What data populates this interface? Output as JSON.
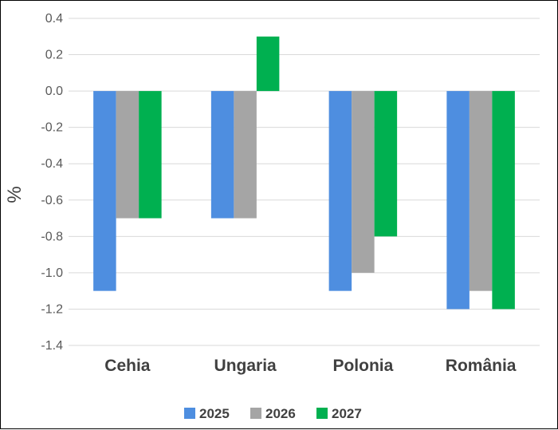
{
  "chart_data": {
    "type": "bar",
    "title": "",
    "xlabel": "",
    "ylabel": "%",
    "categories": [
      "Cehia",
      "Ungaria",
      "Polonia",
      "România"
    ],
    "series": [
      {
        "name": "2025",
        "color": "#4e8ee0",
        "values": [
          -1.1,
          -0.7,
          -1.1,
          -1.2
        ]
      },
      {
        "name": "2026",
        "color": "#a5a5a5",
        "values": [
          -0.7,
          -0.7,
          -1.0,
          -1.1
        ]
      },
      {
        "name": "2027",
        "color": "#00b050",
        "values": [
          -0.7,
          0.3,
          -0.8,
          -1.2
        ]
      }
    ],
    "ylim": [
      -1.4,
      0.4
    ],
    "yticks": [
      0.4,
      0.2,
      0.0,
      -0.2,
      -0.4,
      -0.6,
      -0.8,
      -1.0,
      -1.2,
      -1.4
    ],
    "ytick_labels": [
      "0.4",
      "0.2",
      "0.0",
      "-0.2",
      "-0.4",
      "-0.6",
      "-0.8",
      "-1.0",
      "-1.2",
      "-1.4"
    ],
    "grid": true,
    "legend_position": "bottom"
  }
}
